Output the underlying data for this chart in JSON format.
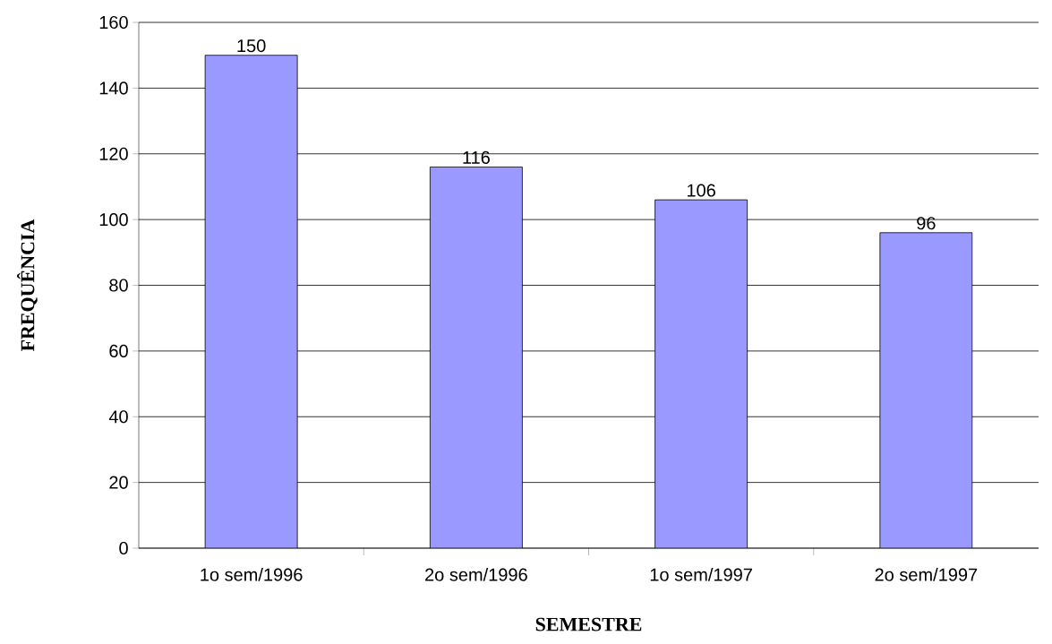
{
  "chart_data": {
    "type": "bar",
    "xlabel": "SEMESTRE",
    "ylabel": "FREQUÊNCIA",
    "categories": [
      "1o sem/1996",
      "2o sem/1996",
      "1o sem/1997",
      "2o sem/1997"
    ],
    "values": [
      150,
      116,
      106,
      96
    ],
    "color": "#9999ff",
    "ylim": [
      0,
      160
    ],
    "yticks": [
      0,
      20,
      40,
      60,
      80,
      100,
      120,
      140,
      160
    ],
    "grid": "y",
    "data_labels": true
  }
}
